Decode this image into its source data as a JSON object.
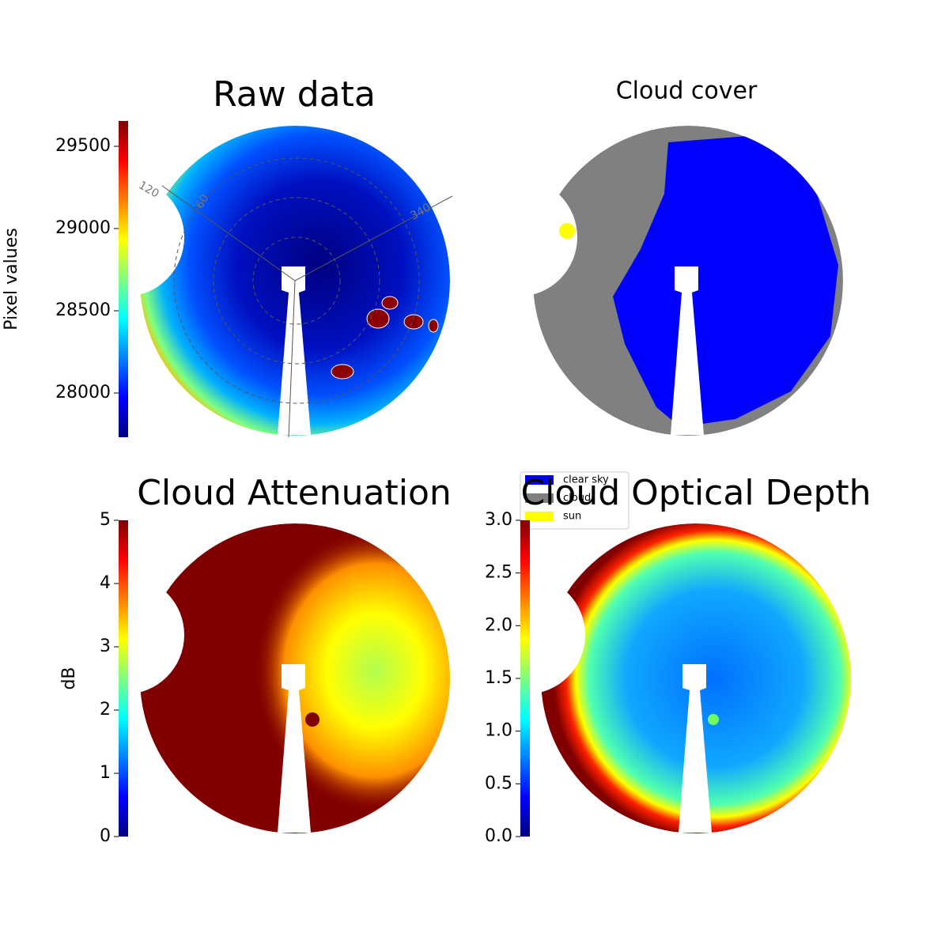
{
  "chart_data": [
    {
      "type": "heatmap",
      "title": "Raw data",
      "colorbar_label": "Pixel values",
      "colormap": "jet",
      "ylim": [
        27731,
        29654
      ],
      "yticks": [
        28000,
        28500,
        29000,
        29500
      ],
      "annotations": [
        "120",
        "60",
        "340"
      ]
    },
    {
      "type": "categorical_map",
      "title": "Cloud cover",
      "legend": [
        {
          "name": "clear sky",
          "color": "#0000ff"
        },
        {
          "name": "cloud",
          "color": "#808080"
        },
        {
          "name": "sun",
          "color": "#ffff00"
        }
      ]
    },
    {
      "type": "heatmap",
      "title": "Cloud Attenuation",
      "colorbar_label": "dB",
      "colormap": "jet",
      "ylim": [
        0,
        5
      ],
      "yticks": [
        0,
        1,
        2,
        3,
        4,
        5
      ]
    },
    {
      "type": "heatmap",
      "title": "Cloud Optical Depth",
      "colormap": "jet",
      "ylim": [
        0,
        3
      ],
      "yticks": [
        {
          "value": 0,
          "label": "0.0"
        },
        0.5,
        {
          "value": 1,
          "label": "1.0"
        },
        1.5,
        {
          "value": 2,
          "label": "2.0"
        },
        2.5,
        {
          "value": 3,
          "label": "3.0"
        }
      ]
    }
  ]
}
